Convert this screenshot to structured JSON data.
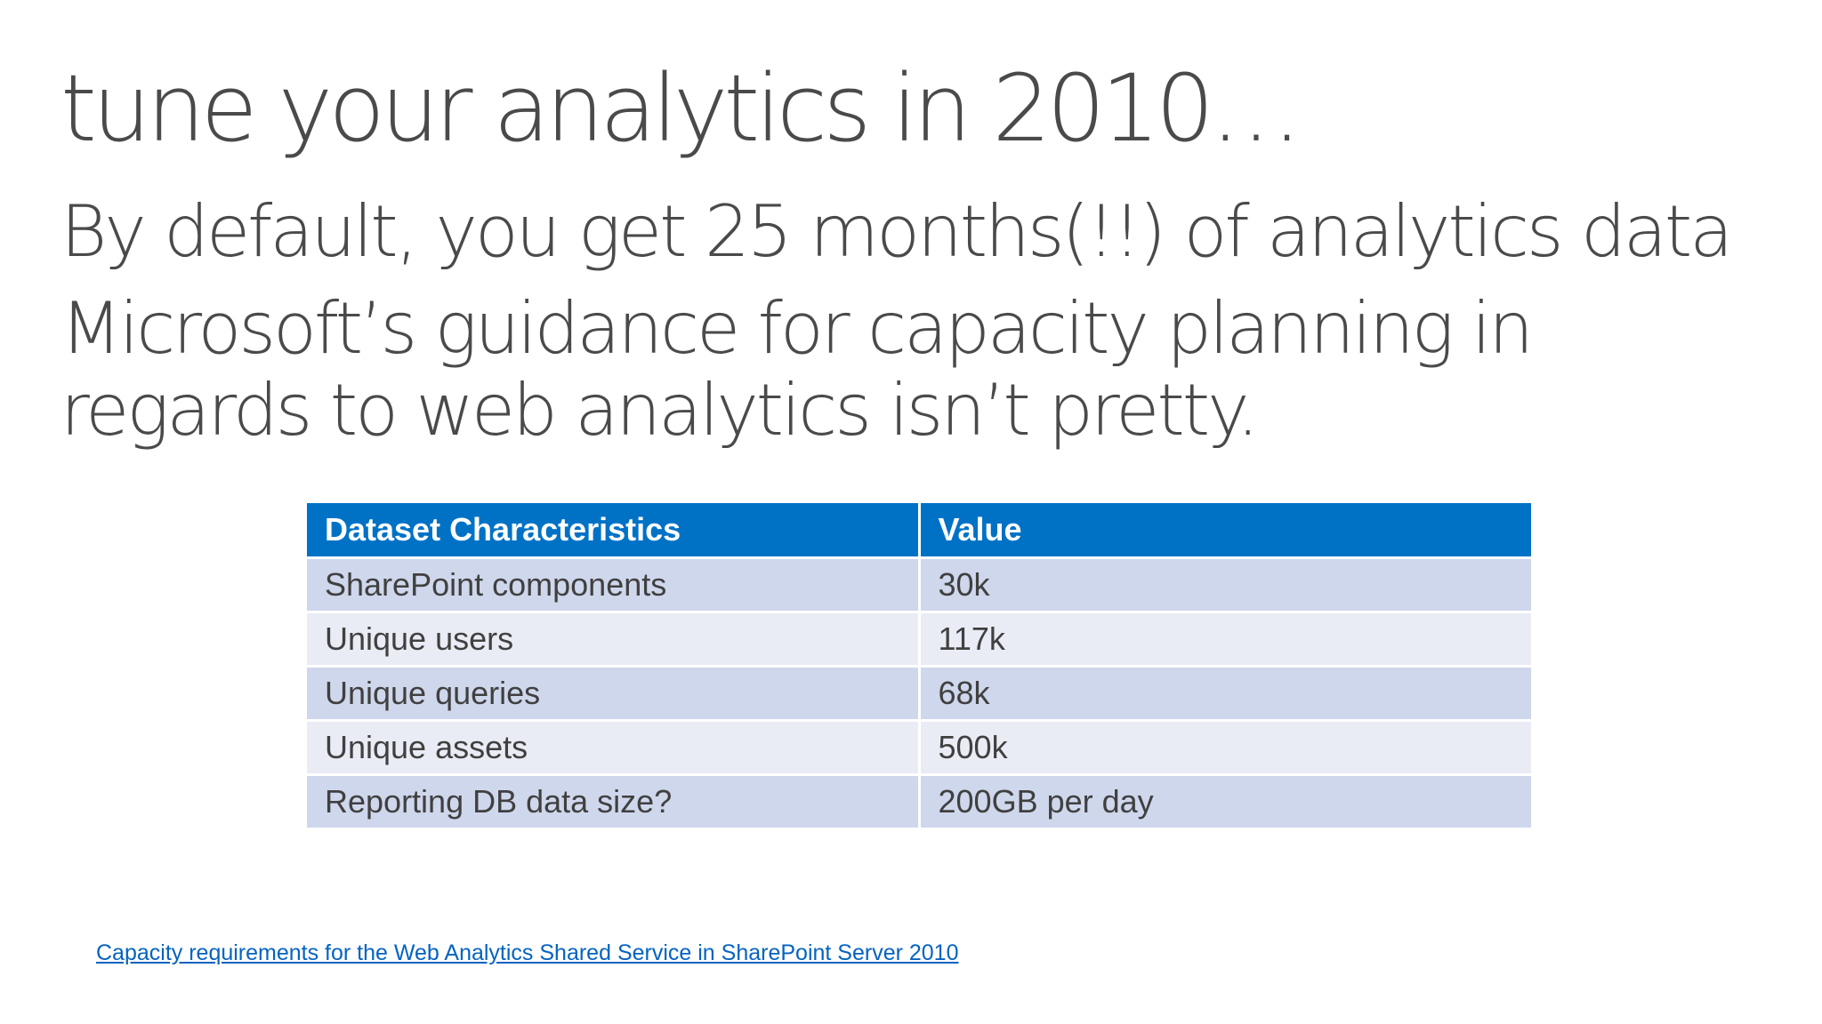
{
  "slide": {
    "title": "tune your analytics in 2010…",
    "bullets": [
      "By default, you get 25 months(!!) of analytics data",
      "Microsoft’s guidance for capacity planning in regards to web analytics isn’t pretty."
    ],
    "table": {
      "headers": [
        "Dataset Characteristics",
        "Value"
      ],
      "rows": [
        [
          "SharePoint components",
          "30k"
        ],
        [
          "Unique users",
          "117k"
        ],
        [
          "Unique queries",
          "68k"
        ],
        [
          "Unique assets",
          "500k"
        ],
        [
          "Reporting DB data size?",
          "200GB per day"
        ]
      ]
    },
    "link_text": "Capacity requirements for the Web Analytics Shared Service in SharePoint Server 2010"
  },
  "colors": {
    "header_bg": "#0072c6",
    "row_odd_bg": "#cfd7ec",
    "row_even_bg": "#e9ecf5",
    "link": "#0563c1",
    "text": "#4a4a4a"
  }
}
